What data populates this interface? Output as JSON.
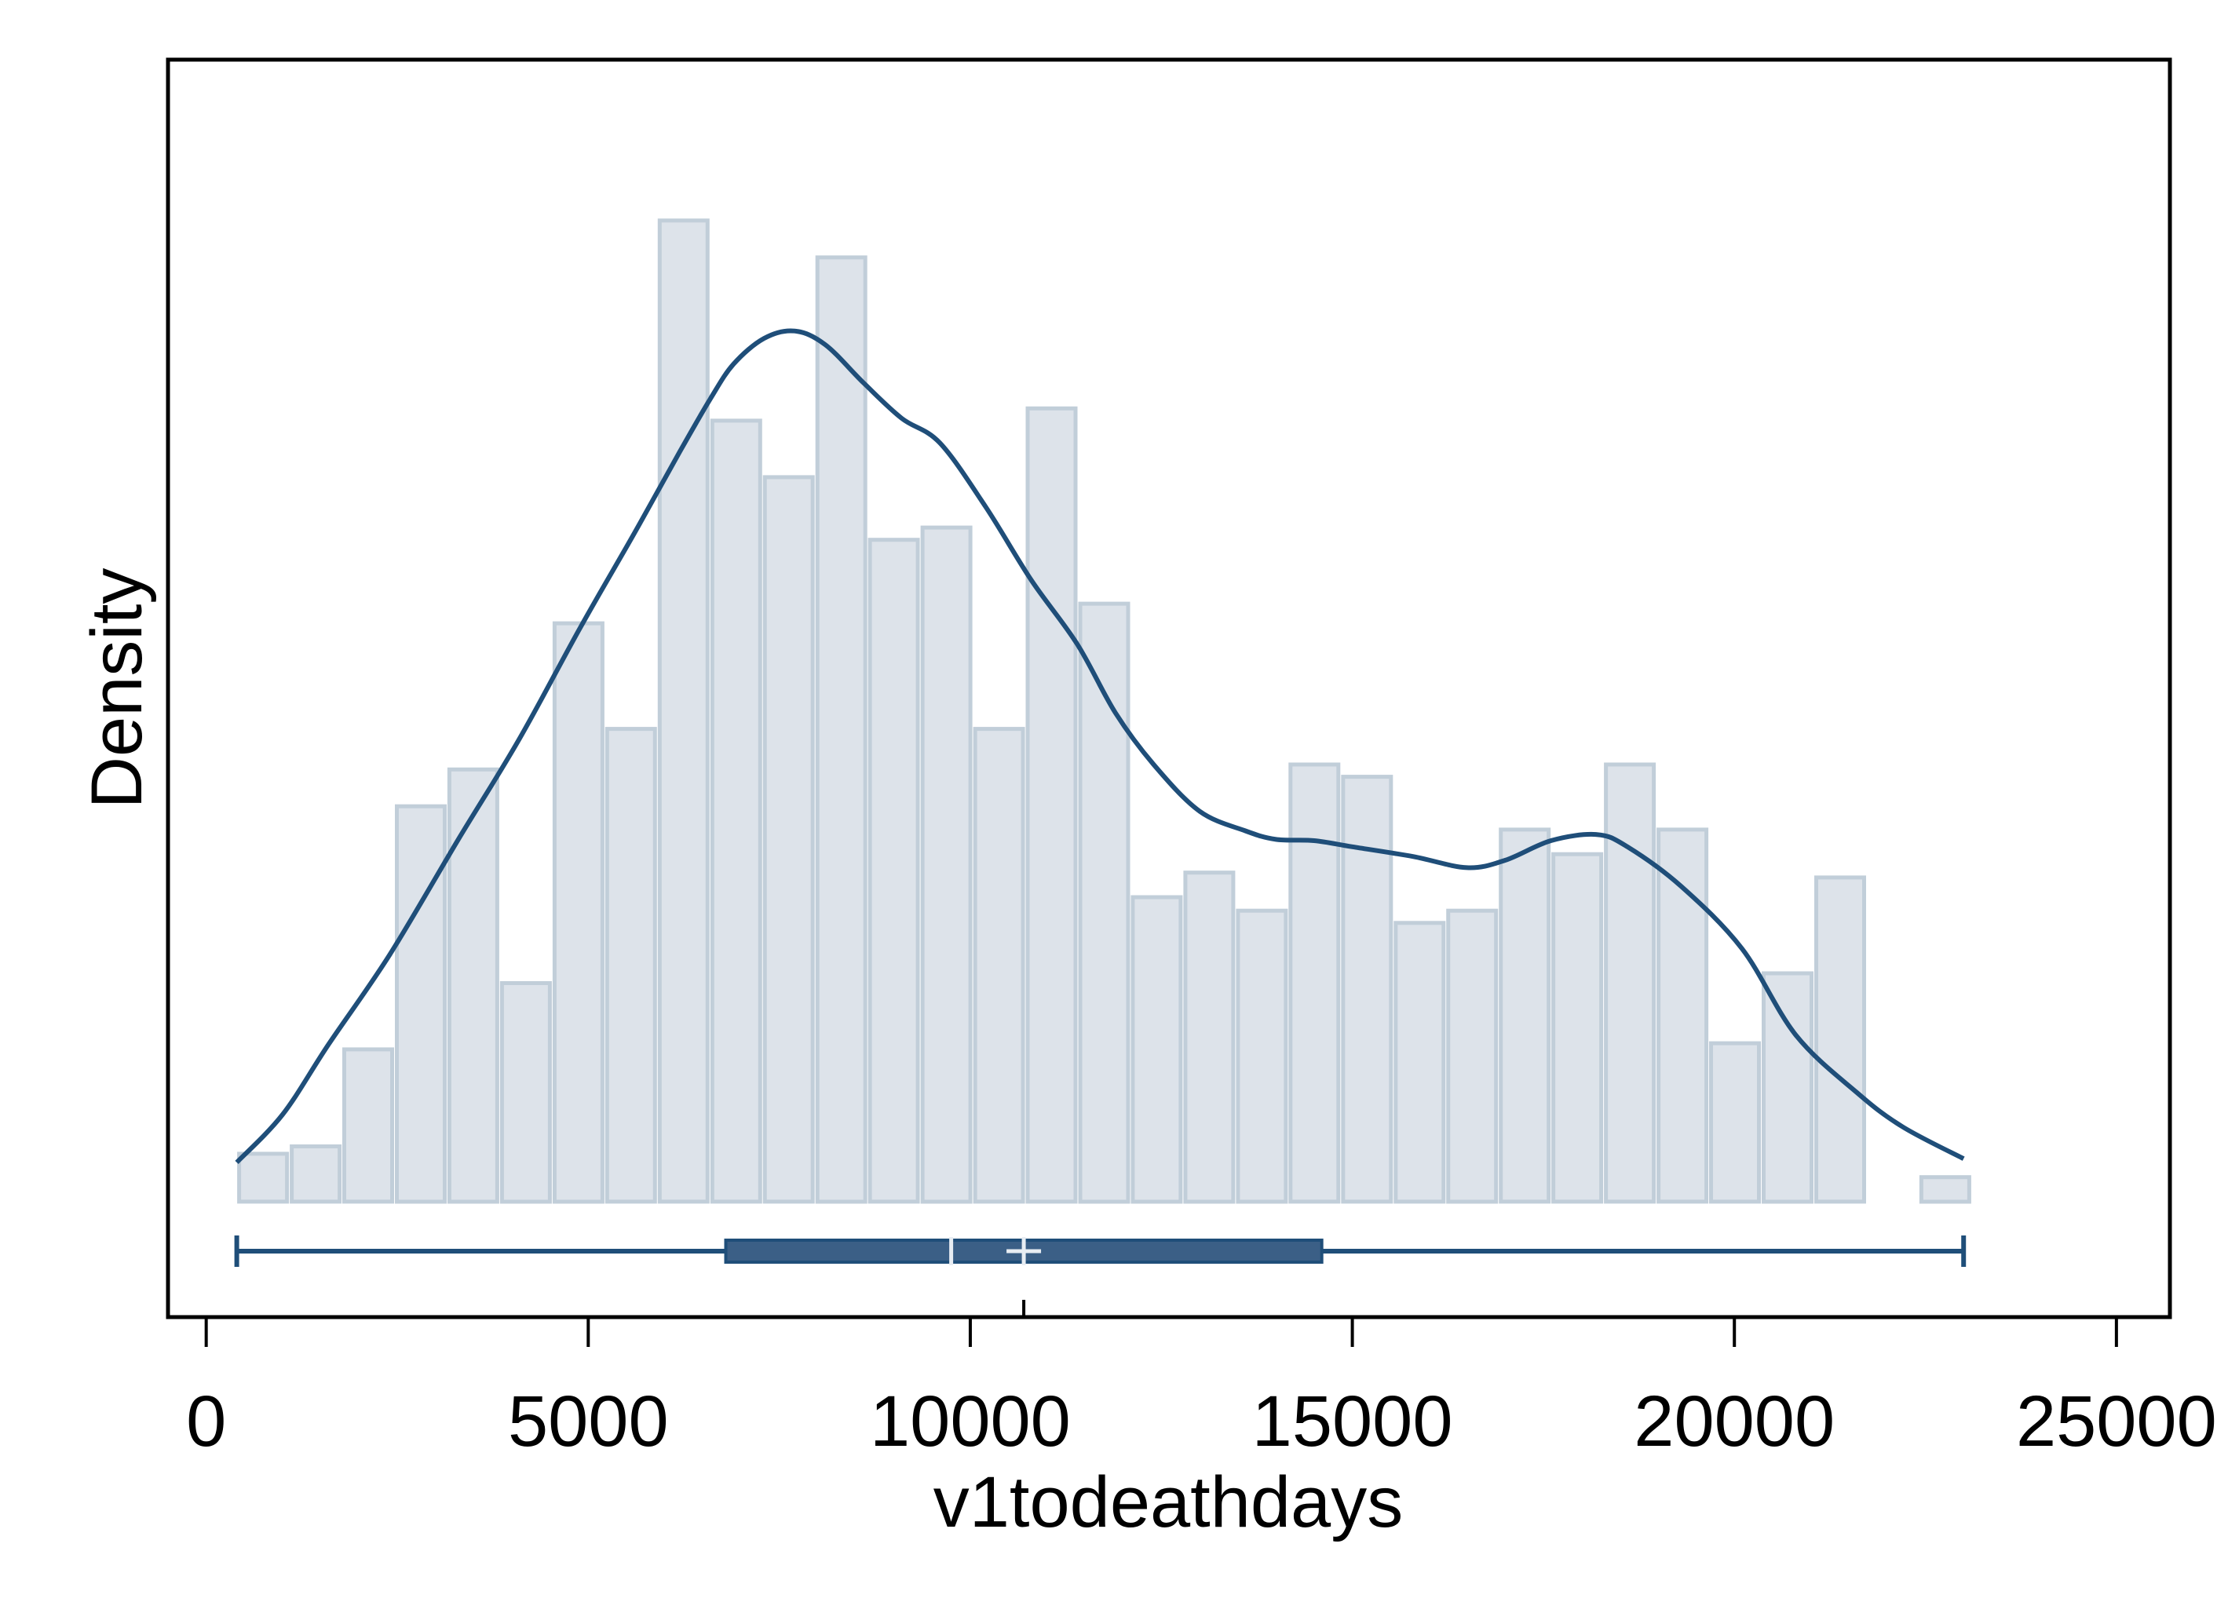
{
  "chart_data": {
    "type": "bar",
    "title": "",
    "xlabel": "v1todeathdays",
    "ylabel": "Density",
    "xlim": [
      -500,
      25700
    ],
    "ylim": [
      -9.4e-06,
      9.3e-05
    ],
    "x_ticks": [
      0,
      5000,
      10000,
      15000,
      20000,
      25000
    ],
    "x_tick_labels": [
      "0",
      "5000",
      "10000",
      "15000",
      "20000",
      "25000"
    ],
    "y_ticks_shown": false,
    "grid": false,
    "colors": {
      "bar_fill": "#dde3ea",
      "bar_stroke": "#c1ced9",
      "density_line": "#1f4e79",
      "box_fill": "#3b5f86",
      "box_line": "#1f4e79",
      "mean_marker": "#e8edf3",
      "frame": "#000000"
    },
    "histogram": {
      "bin_edges": [
        400,
        1088,
        1776,
        2464,
        3152,
        3840,
        4528,
        5216,
        5904,
        6592,
        7280,
        7968,
        8656,
        9344,
        10032,
        10720,
        11408,
        12096,
        12784,
        13472,
        14160,
        14848,
        15536,
        16224,
        16912,
        17600,
        18288,
        18976,
        19664,
        20352,
        21040,
        21728,
        22416,
        23104
      ],
      "density": [
        3.9e-06,
        4.5e-06,
        1.24e-05,
        3.22e-05,
        3.52e-05,
        1.78e-05,
        4.71e-05,
        3.85e-05,
        7.99e-05,
        6.36e-05,
        5.9e-05,
        7.69e-05,
        5.39e-05,
        5.49e-05,
        3.85e-05,
        6.46e-05,
        4.87e-05,
        2.48e-05,
        2.68e-05,
        2.37e-05,
        3.56e-05,
        3.46e-05,
        2.27e-05,
        2.37e-05,
        3.03e-05,
        2.83e-05,
        3.56e-05,
        3.03e-05,
        1.29e-05,
        1.86e-05,
        2.64e-05,
        0,
        2e-06
      ]
    },
    "kde": {
      "x": [
        400,
        1000,
        1600,
        2400,
        3300,
        4100,
        4900,
        5600,
        6200,
        6600,
        6900,
        7300,
        7700,
        8100,
        8600,
        9100,
        9600,
        10200,
        10800,
        11400,
        11900,
        12400,
        13000,
        13600,
        14000,
        14500,
        15000,
        15800,
        16500,
        17000,
        17600,
        18200,
        18600,
        19300,
        20100,
        20800,
        21600,
        22200,
        23000
      ],
      "y": [
        3.2e-06,
        7.1e-06,
        1.28e-05,
        2.01e-05,
        2.95e-05,
        3.77e-05,
        4.68e-05,
        5.44e-05,
        6.11e-05,
        6.54e-05,
        6.82e-05,
        7.03e-05,
        7.09e-05,
        6.98e-05,
        6.67e-05,
        6.38e-05,
        6.18e-05,
        5.66e-05,
        5.06e-05,
        4.54e-05,
        3.98e-05,
        3.56e-05,
        3.18e-05,
        3.02e-05,
        2.95e-05,
        2.94e-05,
        2.89e-05,
        2.81e-05,
        2.72e-05,
        2.78e-05,
        2.94e-05,
        2.99e-05,
        2.89e-05,
        2.57e-05,
        2.06e-05,
        1.36e-05,
        8.9e-06,
        6.1e-06,
        3.5e-06
      ]
    },
    "boxplot": {
      "min": 400,
      "q1": 6800,
      "median": 9750,
      "mean": 10700,
      "q3": 14600,
      "max": 23000
    }
  }
}
